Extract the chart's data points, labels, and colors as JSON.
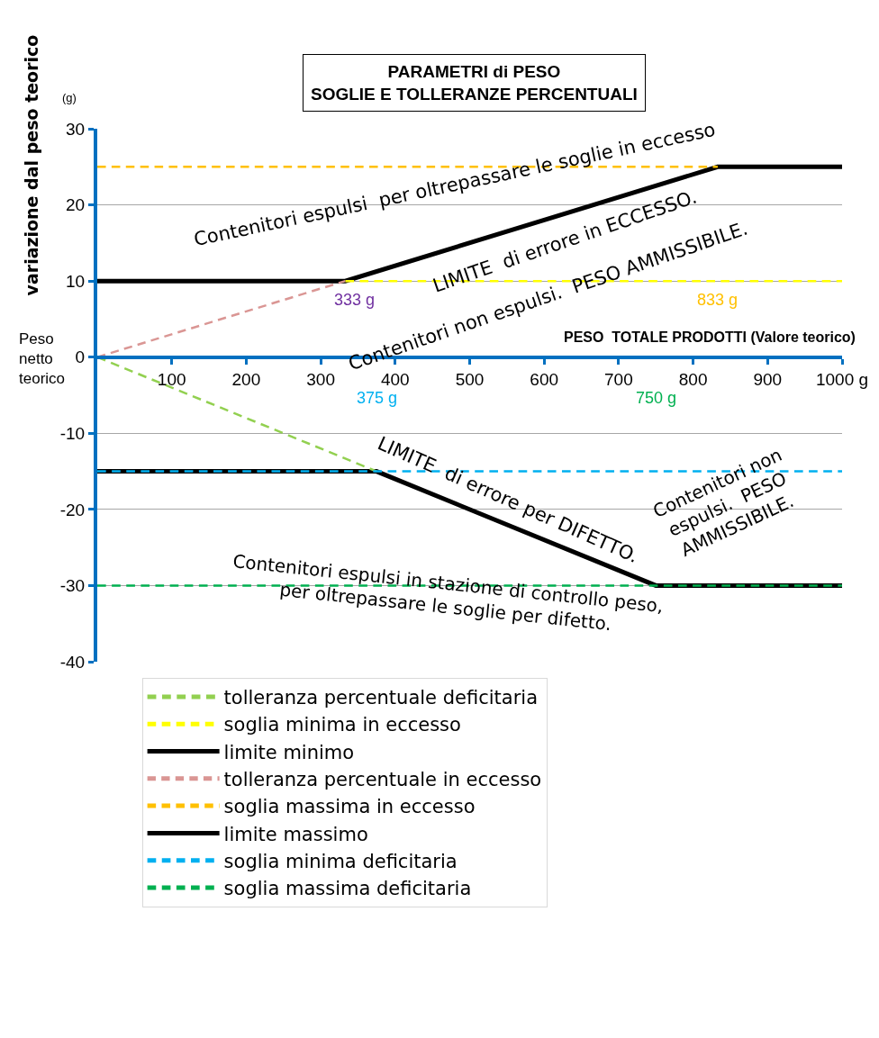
{
  "chart_data": {
    "type": "line",
    "title": "PARAMETRI di PESO",
    "subtitle": "SOGLIE E TOLLERANZE PERCENTUALI",
    "xlabel": "PESO  TOTALE PRODOTTI (Valore teorico)",
    "ylabel": "variazione dal peso teorico",
    "xlim": [
      0,
      1000
    ],
    "xticks": [
      100,
      200,
      300,
      400,
      500,
      600,
      700,
      800,
      900,
      {
        "value": 1000,
        "label": "1000 g"
      }
    ],
    "ylim": [
      -40,
      30
    ],
    "yticks": [
      -40,
      -30,
      -20,
      -10,
      0,
      10,
      20,
      30
    ],
    "grid": "y",
    "legend": "bottom",
    "marker": "none",
    "series": [
      {
        "name": "tolleranza percentuale deficitaria",
        "color": "#92d050",
        "line_style": "dashed",
        "x": [
          0,
          375
        ],
        "values": [
          0,
          -15
        ]
      },
      {
        "name": "soglia minima in eccesso",
        "color": "#ffff00",
        "line_style": "dashed",
        "x": [
          333,
          1000
        ],
        "values": [
          10,
          10
        ]
      },
      {
        "name": "limite minimo",
        "color": "#000000",
        "line_style": "solid",
        "x": [
          0,
          375,
          750,
          1000
        ],
        "values": [
          -15,
          -15,
          -30,
          -30
        ]
      },
      {
        "name": "tolleranza percentuale in eccesso",
        "color": "#da9694",
        "line_style": "dashed",
        "x": [
          0,
          333
        ],
        "values": [
          0,
          10
        ]
      },
      {
        "name": "soglia massima in eccesso",
        "color": "#ffc000",
        "line_style": "dashed",
        "x": [
          0,
          833
        ],
        "values": [
          25,
          25
        ]
      },
      {
        "name": "limite massimo",
        "color": "#000000",
        "line_style": "solid",
        "x": [
          0,
          333,
          833,
          1000
        ],
        "values": [
          10,
          10,
          25,
          25
        ]
      },
      {
        "name": "soglia minima deficitaria",
        "color": "#00b0f0",
        "line_style": "dashed",
        "x": [
          0,
          1000
        ],
        "values": [
          -15,
          -15
        ]
      },
      {
        "name": "soglia massima deficitaria",
        "color": "#00b050",
        "line_style": "dashed",
        "x": [
          0,
          1000
        ],
        "values": [
          -30,
          -30
        ]
      }
    ],
    "annotations": [
      "Contenitori espulsi  per oltrepassare le soglie in eccesso",
      "LIMITE  di errore in ECCESSO.",
      "Contenitori non espulsi.  PESO AMMISSIBILE.",
      "LIMITE  di errore per DIFETTO.",
      "Contenitori non\nespulsi.  PESO\nAMMISSIBILE.",
      "Contenitori espulsi in stazione di controllo peso,\nper oltrepassare le soglie per difetto.",
      "Peso\nnetto\nteorico",
      "(g)",
      "333 g",
      "833 g",
      "375 g",
      "750 g"
    ]
  }
}
